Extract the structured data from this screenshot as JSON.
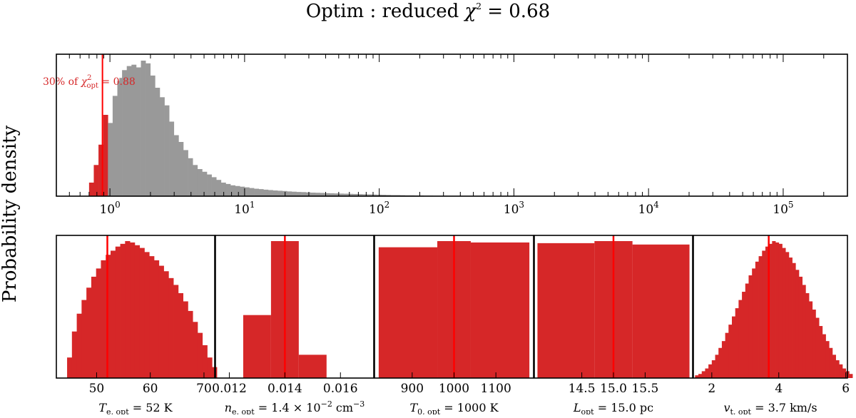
{
  "figure": {
    "title": "Optim : reduced χ² =  0.68",
    "title_main": "Optim : reduced ",
    "title_chi": "χ",
    "title_sup": "2",
    "title_val": " =  0.68",
    "ylabel": "Probability density"
  },
  "colors": {
    "hist_gray": "#999999",
    "hist_red": "#d62728",
    "line_red": "#ff0000"
  },
  "chart_data": [
    {
      "type": "bar",
      "name": "chi2_histogram",
      "xscale": "log",
      "xlim": [
        0.4,
        300000
      ],
      "tick_labels": [
        {
          "x": 1,
          "base": "10",
          "exp": "0"
        },
        {
          "x": 10,
          "base": "10",
          "exp": "1"
        },
        {
          "x": 100,
          "base": "10",
          "exp": "2"
        },
        {
          "x": 1000,
          "base": "10",
          "exp": "3"
        },
        {
          "x": 10000,
          "base": "10",
          "exp": "4"
        },
        {
          "x": 100000,
          "base": "10",
          "exp": "5"
        }
      ],
      "vline": 0.88,
      "annotation": {
        "pre": "30% of ",
        "chi": "χ",
        "sup": "2",
        "sub": "opt",
        "post": " = 0.88"
      },
      "bins_log_start": -0.155,
      "bin_width_log": 0.035,
      "red_bins": [
        0.1,
        0.23,
        0.38,
        0.6
      ],
      "gray_bins": [
        0.54,
        0.74,
        0.85,
        0.93,
        0.96,
        0.97,
        0.95,
        1.0,
        0.98,
        0.89,
        0.8,
        0.73,
        0.67,
        0.55,
        0.45,
        0.4,
        0.34,
        0.28,
        0.23,
        0.2,
        0.18,
        0.16,
        0.14,
        0.12,
        0.1,
        0.09,
        0.08,
        0.075,
        0.07,
        0.065,
        0.06,
        0.055,
        0.052,
        0.048,
        0.045,
        0.042,
        0.04,
        0.038,
        0.035,
        0.033,
        0.031,
        0.03,
        0.028,
        0.026,
        0.025,
        0.024,
        0.022,
        0.021,
        0.02,
        0.019,
        0.018,
        0.017,
        0.016,
        0.015,
        0.014,
        0.013,
        0.012,
        0.011,
        0.01,
        0.009,
        0.008,
        0.008,
        0.007,
        0.006,
        0.006,
        0.005,
        0.005,
        0.004,
        0.004,
        0.003,
        0.003,
        0.003,
        0.002,
        0.002,
        0.002,
        0.002,
        0.001,
        0.001,
        0.001,
        0.001
      ],
      "outlier_bin": {
        "x_log": 0.07,
        "value": 0.82
      }
    },
    {
      "type": "bar",
      "name": "Te_histogram",
      "xlim": [
        42.5,
        72
      ],
      "xticks": [
        50,
        60,
        70
      ],
      "bin_start": 44.5,
      "bin_width": 0.9,
      "values": [
        0.15,
        0.34,
        0.47,
        0.57,
        0.66,
        0.74,
        0.8,
        0.86,
        0.9,
        0.93,
        0.96,
        0.98,
        1.0,
        0.99,
        0.97,
        0.95,
        0.92,
        0.89,
        0.86,
        0.82,
        0.78,
        0.73,
        0.68,
        0.62,
        0.56,
        0.49,
        0.41,
        0.33,
        0.24,
        0.15,
        0.08
      ],
      "vline": 52,
      "label": {
        "sym": "T",
        "sub": "e, opt",
        "rest": " = 52 K"
      }
    },
    {
      "type": "bar",
      "name": "ne_histogram",
      "xlim": [
        0.0115,
        0.0172
      ],
      "xticks": [
        0.012,
        0.014,
        0.016
      ],
      "tick_text": [
        "0.012",
        "0.014",
        "0.016"
      ],
      "bins": [
        {
          "x0": 0.0125,
          "x1": 0.0135,
          "value": 0.46
        },
        {
          "x0": 0.0135,
          "x1": 0.0145,
          "value": 1.0
        },
        {
          "x0": 0.0145,
          "x1": 0.0155,
          "value": 0.17
        }
      ],
      "vline": 0.014,
      "label": {
        "sym": "n",
        "sub": "e, opt",
        "rest": " = 1.4 × 10",
        "exp": "−2",
        "unit": " cm",
        "uexp": "−3"
      }
    },
    {
      "type": "bar",
      "name": "T0_histogram",
      "xlim": [
        810,
        1190
      ],
      "xticks": [
        900,
        1000,
        1100
      ],
      "bins": [
        {
          "x0": 820,
          "x1": 960,
          "value": 0.955
        },
        {
          "x0": 960,
          "x1": 1040,
          "value": 1.0
        },
        {
          "x0": 1040,
          "x1": 1180,
          "value": 0.99
        }
      ],
      "vline": 1000,
      "label": {
        "sym": "T",
        "sub": "0, opt",
        "rest": " = 1000 K"
      }
    },
    {
      "type": "bar",
      "name": "L_histogram",
      "xlim": [
        13.75,
        16.25
      ],
      "xticks": [
        14.5,
        15.0,
        15.5
      ],
      "tick_text": [
        "14.5",
        "15.0",
        "15.5"
      ],
      "bins": [
        {
          "x0": 13.8,
          "x1": 14.7,
          "value": 0.985
        },
        {
          "x0": 14.7,
          "x1": 15.3,
          "value": 1.0
        },
        {
          "x0": 15.3,
          "x1": 16.2,
          "value": 0.975
        }
      ],
      "vline": 15.0,
      "label": {
        "sym": "L",
        "sub": "opt",
        "rest": " = 15.0 pc"
      }
    },
    {
      "type": "bar",
      "name": "vt_histogram",
      "xlim": [
        1.45,
        6.05
      ],
      "xticks": [
        2,
        4,
        6
      ],
      "bin_start": 1.5,
      "bin_width": 0.1,
      "values": [
        0.02,
        0.03,
        0.05,
        0.07,
        0.1,
        0.13,
        0.17,
        0.22,
        0.27,
        0.33,
        0.39,
        0.45,
        0.51,
        0.57,
        0.63,
        0.69,
        0.75,
        0.8,
        0.85,
        0.89,
        0.93,
        0.96,
        0.98,
        1.0,
        0.99,
        0.98,
        0.95,
        0.92,
        0.88,
        0.84,
        0.79,
        0.74,
        0.68,
        0.62,
        0.56,
        0.5,
        0.44,
        0.38,
        0.32,
        0.27,
        0.22,
        0.17,
        0.13,
        0.1,
        0.07,
        0.05,
        0.03
      ],
      "vline": 3.7,
      "label": {
        "sym": "v",
        "sub": "t, opt",
        "rest": " = 3.7 km/s"
      }
    }
  ]
}
